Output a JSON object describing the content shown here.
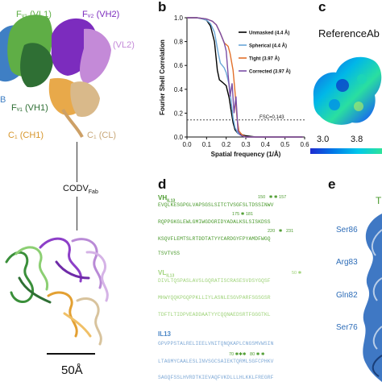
{
  "panel_a": {
    "labels": {
      "fv2_vh2": "Fᵥ₂ (VH2)",
      "fv1_vl1": "Fᵥ₁ (VL1)",
      "vl2": "(VL2)",
      "fv1_vh1": "Fᵥ₁ (VH1)",
      "c1_ch1": "C₁ (CH1)",
      "c1_cl": "C₁ (CL)",
      "codv": "CODV",
      "codv_sub": "Fab",
      "scale": "50Å",
      "edge_b": "B"
    }
  },
  "panel_b": {
    "label": "b",
    "fsc_line_label": "FSC=0.143",
    "chart_data": {
      "type": "line",
      "xlabel": "Spatial frequency (1/Å)",
      "ylabel": "Fourier Shell Correlation",
      "xlim": [
        0.0,
        0.6
      ],
      "ylim": [
        0.0,
        1.0
      ],
      "xticks": [
        "0.0",
        "0.1",
        "0.2",
        "0.3",
        "0.4",
        "0.5",
        "0.6"
      ],
      "yticks": [
        "0.0",
        "0.2",
        "0.4",
        "0.6",
        "0.8",
        "1.0"
      ],
      "threshold": 0.143,
      "series": [
        {
          "name": "Unmasked (4.4 Å)",
          "color": "#000000",
          "x": [
            0.0,
            0.05,
            0.08,
            0.1,
            0.12,
            0.14,
            0.155,
            0.165,
            0.18,
            0.2,
            0.215,
            0.225,
            0.235,
            0.245,
            0.26,
            0.28,
            0.3,
            0.35,
            0.4,
            0.45,
            0.5,
            0.55,
            0.59
          ],
          "y": [
            1.0,
            1.0,
            0.99,
            0.98,
            0.93,
            0.8,
            0.56,
            0.48,
            0.46,
            0.43,
            0.33,
            0.22,
            0.12,
            0.06,
            0.03,
            0.02,
            0.01,
            0.0,
            0.0,
            0.0,
            0.0,
            0.0,
            0.0
          ]
        },
        {
          "name": "Spherical (4.4 Å)",
          "color": "#6aa7d8",
          "x": [
            0.0,
            0.05,
            0.08,
            0.1,
            0.12,
            0.14,
            0.16,
            0.17,
            0.19,
            0.2,
            0.215,
            0.225,
            0.235,
            0.245,
            0.26,
            0.28,
            0.3,
            0.35,
            0.4,
            0.45,
            0.5,
            0.55,
            0.59
          ],
          "y": [
            1.0,
            1.0,
            0.99,
            0.98,
            0.95,
            0.88,
            0.7,
            0.62,
            0.58,
            0.54,
            0.44,
            0.3,
            0.16,
            0.08,
            0.03,
            0.01,
            0.0,
            0.0,
            0.0,
            0.0,
            0.0,
            0.0,
            0.0
          ]
        },
        {
          "name": "Tight (3.97 Å)",
          "color": "#e2702a",
          "x": [
            0.0,
            0.05,
            0.1,
            0.13,
            0.15,
            0.17,
            0.19,
            0.21,
            0.22,
            0.235,
            0.245,
            0.255,
            0.265,
            0.28,
            0.3,
            0.35,
            0.4,
            0.45,
            0.5,
            0.55,
            0.59
          ],
          "y": [
            1.0,
            1.0,
            0.99,
            0.97,
            0.94,
            0.87,
            0.79,
            0.76,
            0.7,
            0.56,
            0.38,
            0.16,
            0.05,
            0.02,
            0.0,
            0.0,
            0.0,
            0.0,
            0.0,
            0.0,
            0.0
          ]
        },
        {
          "name": "Corrected (3.97 Å)",
          "color": "#7b4fa6",
          "x": [
            0.0,
            0.05,
            0.1,
            0.13,
            0.15,
            0.17,
            0.19,
            0.2,
            0.21,
            0.22,
            0.23,
            0.24,
            0.25,
            0.26,
            0.27,
            0.28,
            0.3,
            0.35,
            0.4,
            0.45,
            0.5,
            0.55,
            0.59
          ],
          "y": [
            1.0,
            1.0,
            0.99,
            0.97,
            0.94,
            0.87,
            0.79,
            0.72,
            0.52,
            0.34,
            0.45,
            0.2,
            0.34,
            0.05,
            0.02,
            0.01,
            0.0,
            0.0,
            0.0,
            0.0,
            0.0,
            0.0,
            0.0
          ]
        }
      ]
    }
  },
  "panel_c": {
    "label": "c",
    "title": "ReferenceAb",
    "scale_ticks": [
      "3.0",
      "3.8"
    ]
  },
  "panel_d": {
    "label": "d",
    "vh_head": "VH",
    "vh_sub": "IL13",
    "vh_marks1": "150   ✱ ✱ 157",
    "vh_line1": "EVQLKESGPGLVAPSGSLSITCTVSGFSLTDSSINWV",
    "vh_marks2": "175 ✱ 181",
    "vh_line2": "RQPPGKGLEWLGMIWGDGRIDYADALKSLSISKDSS",
    "vh_marks3": "220   ✱   231",
    "vh_line3": "KSQVFLEMTSLRTDDTATYYCARDGYFPYAMDFWGQ",
    "vh_line4": "TSVTVSS",
    "vl_head": "VL",
    "vl_sub": "IL13",
    "vl_marks1": "50 ✱",
    "vl_line1": "DIVLTQSPASLAVSLGQRATISCRASESVDSYGQSF",
    "vl_line2": "MHWYQQKPGQPPKLLIYLASNLESGVPARFSGSGSR",
    "vl_line3": "TDFTLTIDPVEADDAATYYCQQNAEDSRTFGGGTKL",
    "il13_head": "IL13",
    "il13_line1": "GPVPPSTALRELIEELVNITQNQKAPLCNGSMVWSIN",
    "il13_marks": "70 ✱✱✱   80 ✱ ✱",
    "il13_line2": "LTAGMYCAALESLINVSGCSAIEKTQRMLSGFCPHKV",
    "il13_line3": "SAGQFSSLHVRDTKIEVAQFVKDLLLHLKKLFREGRF"
  },
  "panel_e": {
    "label": "e",
    "title_fragment": "T",
    "residues": [
      "Ser86",
      "Arg83",
      "Gln82",
      "Ser76"
    ]
  }
}
